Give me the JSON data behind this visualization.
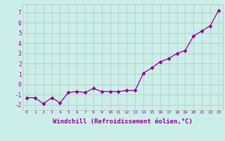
{
  "x": [
    0,
    1,
    2,
    3,
    4,
    5,
    6,
    7,
    8,
    9,
    10,
    11,
    12,
    13,
    14,
    15,
    16,
    17,
    18,
    19,
    20,
    21,
    22,
    23
  ],
  "y": [
    -1.3,
    -1.3,
    -1.9,
    -1.3,
    -1.8,
    -0.8,
    -0.7,
    -0.8,
    -0.4,
    -0.7,
    -0.7,
    -0.7,
    -0.6,
    -0.6,
    1.1,
    1.6,
    2.2,
    2.5,
    3.0,
    3.3,
    4.7,
    5.2,
    5.7,
    7.2
  ],
  "line_color": "#990099",
  "marker": "D",
  "marker_size": 2.5,
  "linewidth": 0.9,
  "xlabel": "Windchill (Refroidissement éolien,°C)",
  "xlabel_fontsize": 6.5,
  "ylabel_ticks": [
    -2,
    -1,
    0,
    1,
    2,
    3,
    4,
    5,
    6,
    7
  ],
  "xtick_labels": [
    "0",
    "1",
    "2",
    "3",
    "4",
    "5",
    "6",
    "7",
    "8",
    "9",
    "10",
    "11",
    "12",
    "13",
    "14",
    "15",
    "16",
    "17",
    "18",
    "19",
    "20",
    "21",
    "22",
    "23"
  ],
  "ylim": [
    -2.5,
    7.8
  ],
  "xlim": [
    -0.5,
    23.5
  ],
  "bg_color": "#cceee8",
  "grid_color": "#b0c8c4",
  "tick_color": "#990099",
  "label_color": "#990099"
}
